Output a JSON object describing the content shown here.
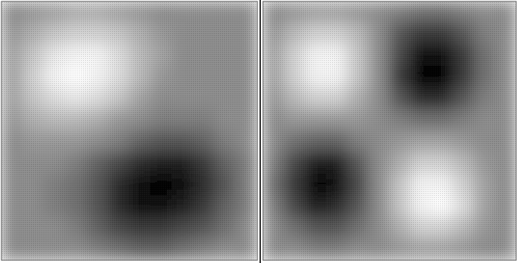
{
  "chart_data": [
    {
      "type": "heatmap",
      "tick_labels": false,
      "zlim": [
        -1,
        1
      ],
      "cells": [
        [
          0,
          0.1,
          0.2,
          0.3,
          0.3,
          0.2,
          0.1,
          0,
          0,
          0,
          0,
          0
        ],
        [
          0.1,
          0.3,
          0.5,
          0.6,
          0.6,
          0.5,
          0.3,
          0.1,
          0,
          0,
          0,
          0
        ],
        [
          0.2,
          0.5,
          0.8,
          0.9,
          0.9,
          0.7,
          0.4,
          0.2,
          0,
          0,
          0,
          0
        ],
        [
          0.2,
          0.6,
          0.9,
          1,
          0.9,
          0.7,
          0.4,
          0.1,
          0,
          0,
          0,
          0
        ],
        [
          0.2,
          0.5,
          0.7,
          0.8,
          0.7,
          0.5,
          0.2,
          0,
          0,
          0,
          0,
          0
        ],
        [
          0.1,
          0.3,
          0.4,
          0.4,
          0.3,
          0.1,
          0,
          -0.1,
          -0.1,
          -0.1,
          0,
          0
        ],
        [
          0,
          0.1,
          0.1,
          0.1,
          0,
          -0.1,
          -0.3,
          -0.4,
          -0.4,
          -0.3,
          -0.1,
          0
        ],
        [
          0,
          0,
          0,
          -0.1,
          -0.3,
          -0.5,
          -0.7,
          -0.8,
          -0.8,
          -0.6,
          -0.3,
          -0.1
        ],
        [
          0,
          0,
          -0.1,
          -0.2,
          -0.4,
          -0.7,
          -0.9,
          -1,
          -0.9,
          -0.7,
          -0.4,
          -0.1
        ],
        [
          0,
          0,
          -0.1,
          -0.2,
          -0.4,
          -0.7,
          -0.9,
          -0.9,
          -0.8,
          -0.6,
          -0.3,
          -0.1
        ],
        [
          0,
          0,
          0,
          -0.1,
          -0.3,
          -0.5,
          -0.6,
          -0.6,
          -0.5,
          -0.4,
          -0.2,
          0
        ],
        [
          0,
          0,
          0,
          0,
          -0.1,
          -0.2,
          -0.3,
          -0.3,
          -0.2,
          -0.1,
          0,
          0
        ]
      ]
    },
    {
      "type": "heatmap",
      "tick_labels": false,
      "zlim": [
        -1,
        1
      ],
      "cells": [
        [
          0,
          0.1,
          0.2,
          0.2,
          0.1,
          0,
          -0.1,
          -0.2,
          -0.2,
          -0.1,
          0,
          0
        ],
        [
          0.1,
          0.4,
          0.6,
          0.6,
          0.4,
          0,
          -0.4,
          -0.6,
          -0.6,
          -0.4,
          -0.1,
          0
        ],
        [
          0.2,
          0.6,
          0.9,
          0.9,
          0.5,
          0,
          -0.5,
          -0.9,
          -0.9,
          -0.6,
          -0.2,
          0
        ],
        [
          0.2,
          0.6,
          0.9,
          0.9,
          0.5,
          0,
          -0.6,
          -1,
          -1,
          -0.6,
          -0.2,
          0
        ],
        [
          0.1,
          0.4,
          0.6,
          0.6,
          0.3,
          0,
          -0.4,
          -0.7,
          -0.7,
          -0.4,
          -0.1,
          0
        ],
        [
          0,
          0.1,
          0.1,
          0.1,
          0.1,
          0,
          -0.1,
          -0.2,
          -0.2,
          -0.1,
          0,
          0
        ],
        [
          0,
          -0.2,
          -0.3,
          -0.3,
          -0.1,
          0,
          0.1,
          0.2,
          0.2,
          0.1,
          0,
          0
        ],
        [
          -0.1,
          -0.5,
          -0.8,
          -0.8,
          -0.4,
          0,
          0.3,
          0.6,
          0.6,
          0.4,
          0.1,
          0
        ],
        [
          -0.2,
          -0.6,
          -1,
          -0.9,
          -0.5,
          0,
          0.5,
          0.9,
          0.9,
          0.6,
          0.2,
          0
        ],
        [
          -0.1,
          -0.5,
          -0.8,
          -0.7,
          -0.4,
          0,
          0.5,
          0.9,
          1,
          0.7,
          0.2,
          0
        ],
        [
          0,
          -0.2,
          -0.4,
          -0.4,
          -0.2,
          0,
          0.3,
          0.6,
          0.6,
          0.4,
          0.1,
          0
        ],
        [
          0,
          0,
          -0.1,
          -0.1,
          0,
          0,
          0.1,
          0.2,
          0.2,
          0.1,
          0,
          0
        ]
      ]
    }
  ]
}
